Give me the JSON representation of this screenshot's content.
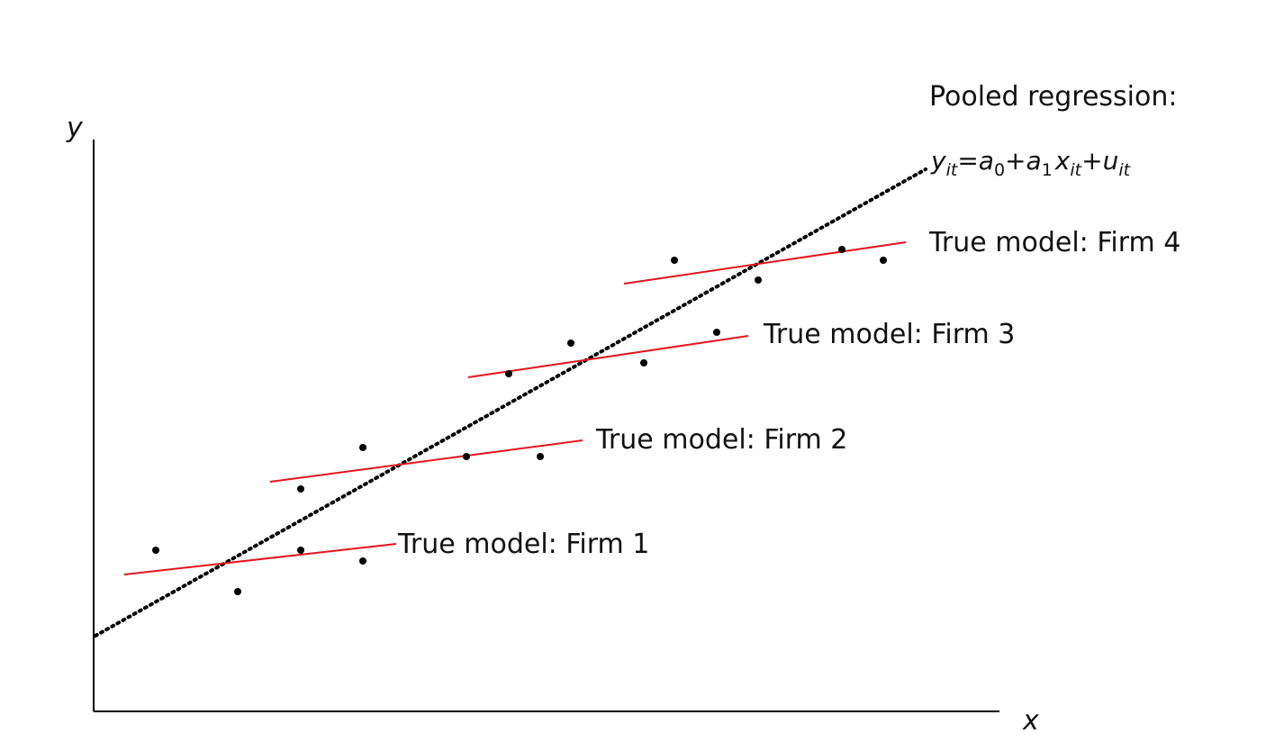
{
  "axes": {
    "x_label": "x",
    "y_label": "y"
  },
  "pooled": {
    "label": "Pooled regression:",
    "equation": {
      "y": "y",
      "y_sub": "it",
      "eq": "=",
      "a0": "a",
      "a0_sub": "0",
      "plus1": "+",
      "a1": "a",
      "a1_sub": "1",
      "x": "x",
      "x_sub": "it",
      "plus2": "+",
      "u": "u",
      "u_sub": "it"
    }
  },
  "firms": [
    {
      "label": "True model: Firm 1"
    },
    {
      "label": "True model: Firm 2"
    },
    {
      "label": "True model: Firm 3"
    },
    {
      "label": "True model: Firm 4"
    }
  ],
  "colors": {
    "firm_line": "#e8141b",
    "pooled_line": "#000000",
    "axes": "#000000"
  }
}
